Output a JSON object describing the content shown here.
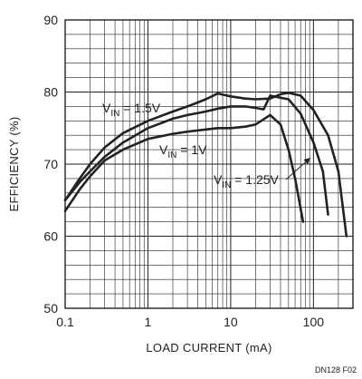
{
  "chart_data": {
    "type": "line",
    "title": "",
    "xlabel": "LOAD CURRENT (mA)",
    "ylabel": "EFFICIENCY (%)",
    "x_scale": "log",
    "xlim": [
      0.1,
      300
    ],
    "ylim": [
      50,
      90
    ],
    "grid": true,
    "x_ticks": [
      "0.1",
      "1",
      "10",
      "100"
    ],
    "y_ticks": [
      "50",
      "60",
      "70",
      "80",
      "90"
    ],
    "series": [
      {
        "name": "VIN = 1.5V",
        "label_main": "V",
        "label_sub": "IN",
        "label_rest": " = 1.5V",
        "x": [
          0.1,
          0.15,
          0.2,
          0.3,
          0.5,
          1,
          2,
          3,
          5,
          7,
          10,
          15,
          20,
          30,
          40,
          50,
          70,
          100,
          150,
          200,
          250
        ],
        "y": [
          65,
          68,
          70,
          72.3,
          74.3,
          76,
          77.3,
          78,
          79,
          79.8,
          79.4,
          79.1,
          79,
          79.1,
          79.7,
          79.9,
          79.5,
          77.5,
          74,
          69,
          60
        ]
      },
      {
        "name": "VIN = 1.25V",
        "label_main": "V",
        "label_sub": "IN",
        "label_rest": " = 1.25V",
        "x": [
          0.1,
          0.15,
          0.2,
          0.3,
          0.5,
          1,
          2,
          3,
          5,
          7,
          10,
          15,
          20,
          25,
          30,
          50,
          70,
          100,
          130,
          150
        ],
        "y": [
          65,
          67.5,
          69,
          71,
          73,
          75,
          76.3,
          76.8,
          77.3,
          77.7,
          78,
          78,
          77.8,
          77.6,
          79.5,
          79,
          77,
          73,
          69,
          63
        ]
      },
      {
        "name": "VIN = 1V",
        "label_main": "V",
        "label_sub": "IN",
        "label_rest": " = 1V",
        "x": [
          0.1,
          0.15,
          0.2,
          0.3,
          0.5,
          1,
          2,
          3,
          5,
          7,
          10,
          15,
          20,
          30,
          40,
          50,
          60,
          75
        ],
        "y": [
          63.5,
          66.5,
          68.3,
          70.5,
          72,
          73.5,
          74.2,
          74.5,
          74.8,
          75,
          75,
          75.2,
          75.5,
          76.8,
          75.5,
          72,
          68,
          62
        ]
      }
    ],
    "annotations": [
      "DN128 F02"
    ]
  }
}
